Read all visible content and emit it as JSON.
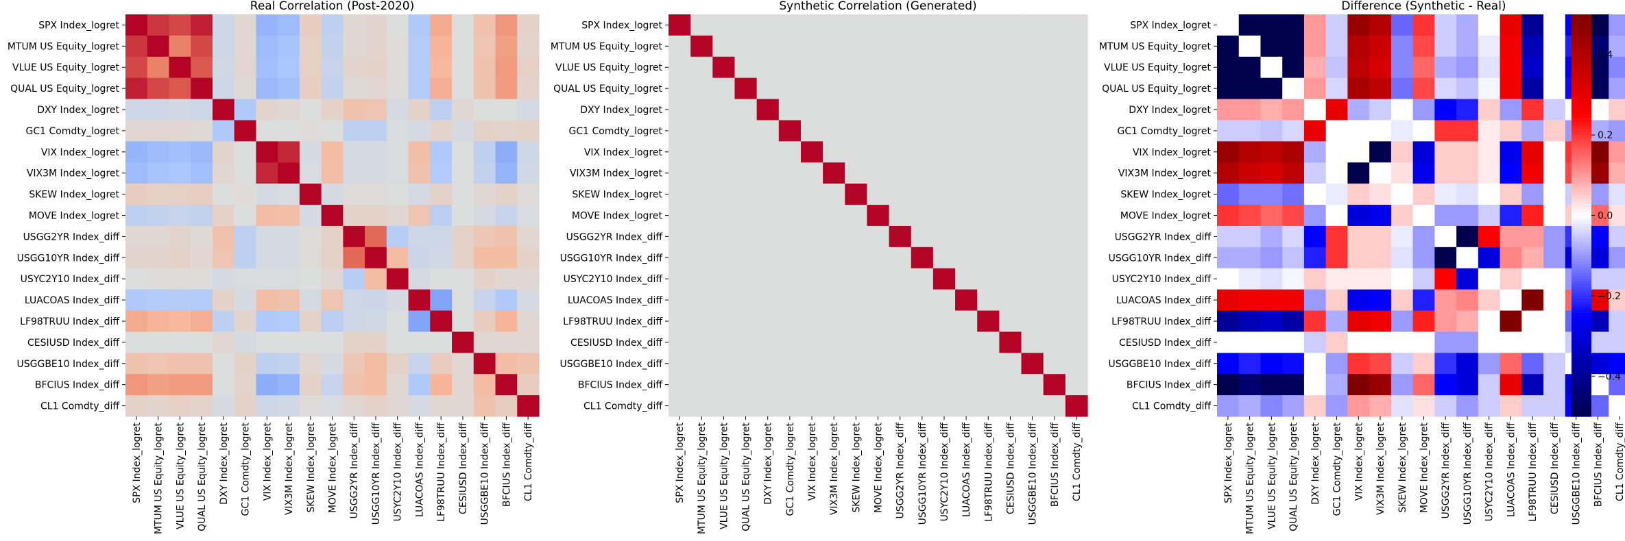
{
  "figure": {
    "variables": [
      "SPX Index_logret",
      "MTUM US Equity_logret",
      "VLUE US Equity_logret",
      "QUAL US Equity_logret",
      "DXY Index_logret",
      "GC1 Comdty_logret",
      "VIX Index_logret",
      "VIX3M Index_logret",
      "SKEW Index_logret",
      "MOVE Index_logret",
      "USGG2YR Index_diff",
      "USGG10YR Index_diff",
      "USYC2Y10 Index_diff",
      "LUACOAS Index_diff",
      "LF98TRUU Index_diff",
      "CESIUSD Index_diff",
      "USGGBE10 Index_diff",
      "BFCIUS Index_diff",
      "CL1 Comdty_diff"
    ]
  },
  "colors": {
    "coolwarm": [
      "#3b4cc0",
      "#6f92f3",
      "#aac7fd",
      "#dcdddd",
      "#f7b89c",
      "#e7745b",
      "#b40426"
    ],
    "seismic": [
      "#00004c",
      "#0000ff",
      "#ffffff",
      "#ff0000",
      "#800000"
    ]
  },
  "chart_data": [
    {
      "type": "heatmap",
      "title": "Real Correlation (Post-2020)",
      "colormap": "coolwarm",
      "vmin": -1,
      "vmax": 1,
      "values": [
        [
          1.0,
          0.85,
          0.8,
          0.92,
          -0.1,
          0.05,
          -0.45,
          -0.4,
          0.15,
          -0.2,
          0.05,
          0.08,
          0.0,
          -0.3,
          0.4,
          0.0,
          0.25,
          0.5,
          0.1
        ],
        [
          0.85,
          1.0,
          0.6,
          0.8,
          -0.1,
          0.05,
          -0.4,
          -0.35,
          0.12,
          -0.18,
          0.05,
          0.08,
          0.02,
          -0.28,
          0.35,
          0.0,
          0.22,
          0.45,
          0.08
        ],
        [
          0.8,
          0.6,
          1.0,
          0.75,
          -0.08,
          0.06,
          -0.38,
          -0.33,
          0.12,
          -0.15,
          0.08,
          0.1,
          0.03,
          -0.27,
          0.33,
          0.0,
          0.25,
          0.48,
          0.12
        ],
        [
          0.92,
          0.8,
          0.75,
          1.0,
          -0.1,
          0.04,
          -0.42,
          -0.38,
          0.14,
          -0.18,
          0.04,
          0.06,
          0.01,
          -0.28,
          0.38,
          0.0,
          0.24,
          0.48,
          0.09
        ],
        [
          -0.1,
          -0.1,
          -0.08,
          -0.1,
          1.0,
          -0.3,
          0.08,
          0.05,
          0.0,
          0.1,
          0.25,
          0.22,
          -0.05,
          0.1,
          -0.2,
          0.05,
          0.0,
          0.0,
          -0.05
        ],
        [
          0.05,
          0.05,
          0.06,
          0.04,
          -0.3,
          1.0,
          0.0,
          0.0,
          0.02,
          0.0,
          -0.2,
          -0.2,
          -0.02,
          -0.05,
          0.08,
          -0.05,
          0.1,
          0.08,
          0.1
        ],
        [
          -0.45,
          -0.4,
          -0.38,
          -0.42,
          0.08,
          0.0,
          1.0,
          0.9,
          -0.05,
          0.3,
          -0.05,
          -0.05,
          -0.02,
          0.28,
          -0.3,
          0.0,
          -0.2,
          -0.5,
          -0.1
        ],
        [
          -0.4,
          -0.35,
          -0.33,
          -0.38,
          0.05,
          0.0,
          0.9,
          1.0,
          -0.03,
          0.28,
          -0.05,
          -0.05,
          -0.02,
          0.25,
          -0.28,
          0.0,
          -0.18,
          -0.45,
          -0.08
        ],
        [
          0.15,
          0.12,
          0.12,
          0.14,
          0.0,
          0.02,
          -0.05,
          -0.03,
          1.0,
          -0.05,
          0.02,
          0.03,
          0.0,
          -0.05,
          0.1,
          0.0,
          0.05,
          0.1,
          0.03
        ],
        [
          -0.2,
          -0.18,
          -0.15,
          -0.18,
          0.1,
          0.0,
          0.3,
          0.28,
          -0.05,
          1.0,
          0.1,
          0.1,
          0.05,
          0.22,
          -0.22,
          0.0,
          -0.05,
          -0.15,
          -0.03
        ],
        [
          0.05,
          0.05,
          0.08,
          0.04,
          0.25,
          -0.2,
          -0.05,
          -0.05,
          0.02,
          0.1,
          1.0,
          0.7,
          -0.25,
          -0.1,
          -0.1,
          0.1,
          0.2,
          0.25,
          0.05
        ],
        [
          0.08,
          0.08,
          0.1,
          0.06,
          0.22,
          -0.2,
          -0.05,
          -0.05,
          0.03,
          0.1,
          0.7,
          1.0,
          0.3,
          -0.12,
          -0.08,
          0.1,
          0.3,
          0.3,
          0.1
        ],
        [
          0.0,
          0.02,
          0.03,
          0.01,
          -0.05,
          -0.02,
          -0.02,
          -0.02,
          0.0,
          0.05,
          -0.25,
          0.3,
          1.0,
          -0.05,
          0.0,
          0.0,
          0.1,
          0.05,
          0.05
        ],
        [
          -0.3,
          -0.28,
          -0.27,
          -0.28,
          0.1,
          -0.05,
          0.28,
          0.25,
          -0.05,
          0.22,
          -0.1,
          -0.12,
          -0.05,
          1.0,
          -0.55,
          0.0,
          -0.15,
          -0.3,
          -0.05
        ],
        [
          0.4,
          0.35,
          0.33,
          0.38,
          -0.2,
          0.08,
          -0.3,
          -0.28,
          0.1,
          -0.22,
          -0.1,
          -0.08,
          0.0,
          -0.55,
          1.0,
          0.0,
          0.15,
          0.35,
          0.05
        ],
        [
          0.0,
          0.0,
          0.0,
          0.0,
          0.05,
          -0.05,
          0.0,
          0.0,
          0.0,
          0.0,
          0.1,
          0.1,
          0.0,
          0.0,
          0.0,
          1.0,
          0.05,
          0.05,
          0.05
        ],
        [
          0.25,
          0.22,
          0.25,
          0.24,
          0.0,
          0.1,
          -0.2,
          -0.18,
          0.05,
          -0.05,
          0.2,
          0.3,
          0.1,
          -0.15,
          0.15,
          0.05,
          1.0,
          0.3,
          0.25
        ],
        [
          0.5,
          0.45,
          0.48,
          0.48,
          0.0,
          0.08,
          -0.5,
          -0.45,
          0.1,
          -0.15,
          0.25,
          0.3,
          0.05,
          -0.3,
          0.35,
          0.05,
          0.3,
          1.0,
          0.15
        ],
        [
          0.1,
          0.08,
          0.12,
          0.09,
          -0.05,
          0.1,
          -0.1,
          -0.08,
          0.03,
          -0.03,
          0.05,
          0.1,
          0.05,
          -0.05,
          0.05,
          0.05,
          0.25,
          0.15,
          1.0
        ]
      ]
    },
    {
      "type": "heatmap",
      "title": "Synthetic Correlation (Generated)",
      "colormap": "coolwarm",
      "vmin": -1,
      "vmax": 1,
      "values": "identity"
    },
    {
      "type": "heatmap",
      "title": "Difference (Synthetic - Real)",
      "colormap": "seismic",
      "vmin": -0.5,
      "vmax": 0.5,
      "values": "synthetic-minus-real",
      "colorbar_ticks": [
        {
          "value": 0.4,
          "label": "0.4"
        },
        {
          "value": 0.2,
          "label": "0.2"
        },
        {
          "value": 0.0,
          "label": "0.0"
        },
        {
          "value": -0.2,
          "label": "−0.2"
        },
        {
          "value": -0.4,
          "label": "−0.4"
        }
      ]
    }
  ]
}
